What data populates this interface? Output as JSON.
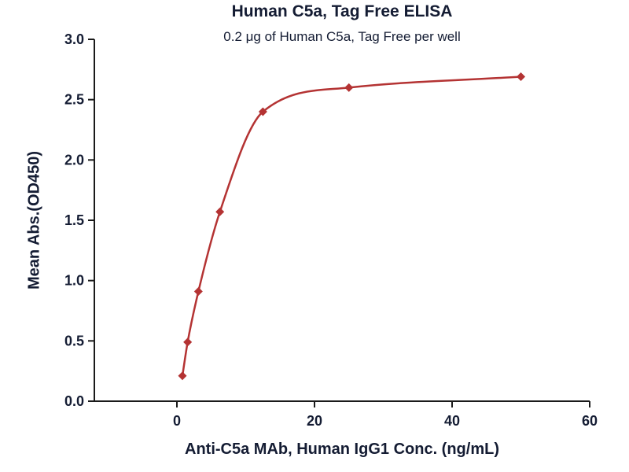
{
  "chart_data": {
    "type": "scatter",
    "curve": "4PL-fit-line",
    "title": "Human C5a, Tag Free ELISA",
    "subtitle": "0.2 μg of Human C5a, Tag Free per well",
    "xlabel": "Anti-C5a MAb, Human IgG1 Conc. (ng/mL)",
    "ylabel": "Mean Abs.(OD450)",
    "x": [
      0.8,
      1.56,
      3.125,
      6.25,
      12.5,
      25,
      50
    ],
    "y": [
      0.21,
      0.49,
      0.91,
      1.57,
      2.4,
      2.6,
      2.69
    ],
    "xlim": [
      -12,
      60
    ],
    "ylim": [
      0,
      3
    ],
    "xticks": [
      0,
      20,
      40,
      60
    ],
    "yticks": [
      0,
      0.5,
      1,
      1.5,
      2,
      2.5,
      3
    ],
    "ytick_decimals": 1,
    "marker": "diamond",
    "line_color": "#b43333",
    "marker_color": "#b43333",
    "axis_color": "#1a1a1a",
    "text_color": "#141c33",
    "background": "#ffffff",
    "grid": false,
    "legend": null
  }
}
